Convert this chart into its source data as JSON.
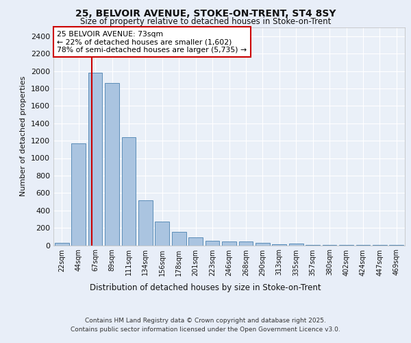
{
  "title1": "25, BELVOIR AVENUE, STOKE-ON-TRENT, ST4 8SY",
  "title2": "Size of property relative to detached houses in Stoke-on-Trent",
  "xlabel": "Distribution of detached houses by size in Stoke-on-Trent",
  "ylabel": "Number of detached properties",
  "categories": [
    "22sqm",
    "44sqm",
    "67sqm",
    "89sqm",
    "111sqm",
    "134sqm",
    "156sqm",
    "178sqm",
    "201sqm",
    "223sqm",
    "246sqm",
    "268sqm",
    "290sqm",
    "313sqm",
    "335sqm",
    "357sqm",
    "380sqm",
    "402sqm",
    "424sqm",
    "447sqm",
    "469sqm"
  ],
  "values": [
    30,
    1170,
    1980,
    1860,
    1240,
    515,
    275,
    155,
    90,
    50,
    45,
    40,
    25,
    15,
    20,
    5,
    5,
    5,
    2,
    2,
    2
  ],
  "bar_color": "#aac4e0",
  "bar_edge_color": "#5b8db8",
  "annotation_text": "25 BELVOIR AVENUE: 73sqm\n← 22% of detached houses are smaller (1,602)\n78% of semi-detached houses are larger (5,735) →",
  "vline_color": "#cc0000",
  "bg_color": "#e8eef8",
  "plot_bg_color": "#eaf0f8",
  "grid_color": "#ffffff",
  "footer1": "Contains HM Land Registry data © Crown copyright and database right 2025.",
  "footer2": "Contains public sector information licensed under the Open Government Licence v3.0.",
  "ylim": [
    0,
    2500
  ],
  "yticks": [
    0,
    200,
    400,
    600,
    800,
    1000,
    1200,
    1400,
    1600,
    1800,
    2000,
    2200,
    2400
  ]
}
